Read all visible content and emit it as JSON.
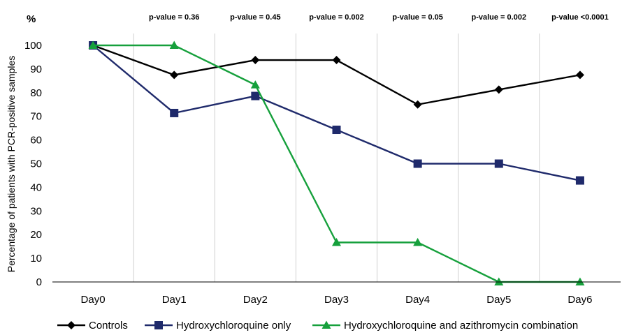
{
  "chart_data": {
    "type": "line",
    "ylabel": "Percentage of patients with PCR-positive samples",
    "y_unit_label": "%",
    "ylim": [
      0,
      100
    ],
    "yticks": [
      0,
      10,
      20,
      30,
      40,
      50,
      60,
      70,
      80,
      90,
      100
    ],
    "categories": [
      "Day0",
      "Day1",
      "Day2",
      "Day3",
      "Day4",
      "Day5",
      "Day6"
    ],
    "vertical_gridlines": true,
    "horizontal_gridlines": false,
    "legend_position": "bottom",
    "p_values": [
      "p-value = 0.36",
      "p-value = 0.45",
      "p-value = 0.002",
      "p-value = 0.05",
      "p-value = 0.002",
      "p-value <0.0001"
    ],
    "series": [
      {
        "name": "Controls",
        "color": "#000000",
        "marker": "diamond",
        "values": [
          100,
          87.5,
          93.8,
          93.8,
          75,
          81.3,
          87.5
        ]
      },
      {
        "name": "Hydroxychloroquine only",
        "color": "#1f2a6b",
        "marker": "square",
        "values": [
          100,
          71.4,
          78.6,
          64.3,
          50,
          50,
          42.9
        ]
      },
      {
        "name": "Hydroxychloroquine and azithromycin combination",
        "color": "#16a03c",
        "marker": "triangle",
        "values": [
          100,
          100,
          83.3,
          16.7,
          16.7,
          0,
          0
        ]
      }
    ]
  }
}
